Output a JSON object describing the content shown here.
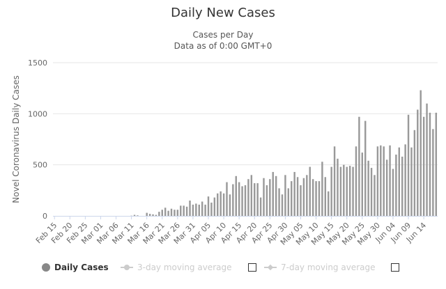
{
  "chart_data": {
    "type": "bar",
    "title": "Daily New Cases",
    "subtitle": [
      "Cases per Day",
      "Data as of 0:00 GMT+0"
    ],
    "ylabel": "Novel Coronavirus Daily Cases",
    "xlabel": "",
    "ylim": [
      0,
      1500
    ],
    "yticks": [
      0,
      500,
      1000,
      1500
    ],
    "grid": true,
    "legend_position": "bottom",
    "start_date": "2020-02-15",
    "x_tick_labels": [
      "Feb 15",
      "Feb 20",
      "Feb 25",
      "Mar 01",
      "Mar 06",
      "Mar 11",
      "Mar 16",
      "Mar 21",
      "Mar 26",
      "Mar 31",
      "Apr 05",
      "Apr 10",
      "Apr 15",
      "Apr 20",
      "Apr 25",
      "Apr 30",
      "May 05",
      "May 10",
      "May 15",
      "May 20",
      "May 25",
      "May 30",
      "Jun 04",
      "Jun 09",
      "Jun 14"
    ],
    "series": [
      {
        "name": "Daily Cases",
        "color": "#999999",
        "values": [
          0,
          0,
          0,
          0,
          0,
          0,
          0,
          0,
          0,
          0,
          0,
          0,
          0,
          0,
          0,
          0,
          0,
          0,
          0,
          0,
          0,
          0,
          0,
          0,
          0,
          2,
          10,
          5,
          0,
          0,
          30,
          20,
          15,
          10,
          40,
          60,
          80,
          50,
          70,
          60,
          60,
          100,
          100,
          90,
          150,
          110,
          120,
          110,
          140,
          110,
          190,
          130,
          180,
          220,
          240,
          220,
          330,
          210,
          310,
          390,
          330,
          290,
          300,
          360,
          400,
          320,
          320,
          180,
          370,
          300,
          360,
          430,
          390,
          270,
          210,
          400,
          270,
          340,
          430,
          380,
          300,
          370,
          400,
          480,
          360,
          340,
          340,
          530,
          380,
          240,
          480,
          680,
          560,
          480,
          500,
          480,
          490,
          480,
          680,
          970,
          620,
          930,
          540,
          470,
          400,
          680,
          690,
          680,
          550,
          690,
          460,
          600,
          670,
          580,
          700,
          990,
          670,
          840,
          1040,
          1230,
          970,
          1100,
          1010,
          850,
          1010
        ]
      },
      {
        "name": "3-day moving average",
        "color": "#cccccc",
        "visible": false
      },
      {
        "name": "7-day moving average",
        "color": "#cccccc",
        "visible": false
      }
    ]
  }
}
